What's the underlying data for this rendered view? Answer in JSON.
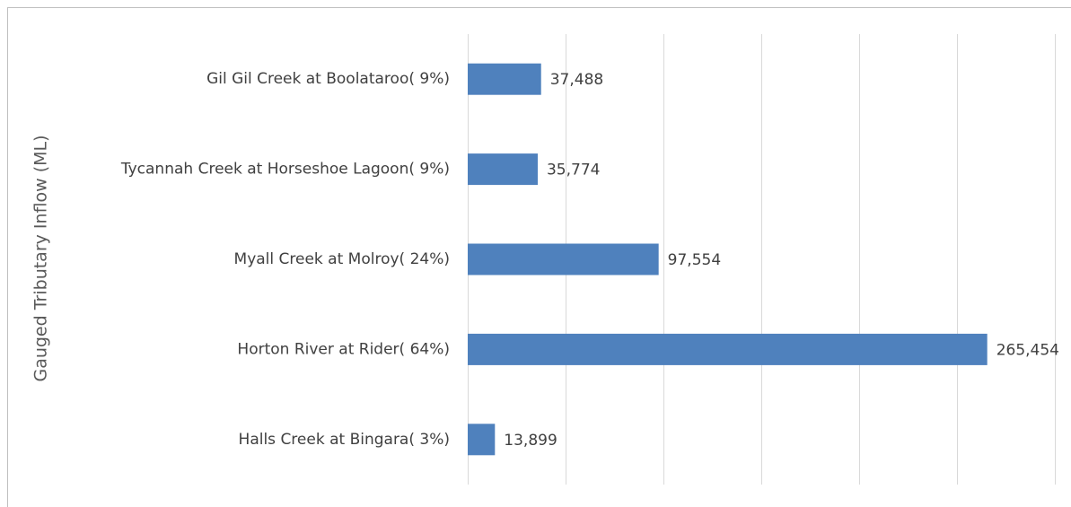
{
  "chart_data": {
    "type": "barh",
    "y_label": "Gauged Tributary Inflow (ML)",
    "categories": [
      "Gil Gil Creek at Boolataroo( 9%)",
      "Tycannah Creek at Horseshoe Lagoon( 9%)",
      "Myall Creek at Molroy( 24%)",
      "Horton River at Rider( 64%)",
      "Halls Creek at Bingara( 3%)"
    ],
    "values": [
      37488,
      35774,
      97554,
      265454,
      13899
    ],
    "value_labels": [
      "37,488",
      "35,774",
      "97,554",
      "265,454",
      "13,899"
    ],
    "color": "#4f81bd",
    "xlim": [
      0,
      300000
    ],
    "xticks": [
      0,
      50000,
      100000,
      150000,
      200000,
      250000,
      300000
    ],
    "grid": true
  }
}
